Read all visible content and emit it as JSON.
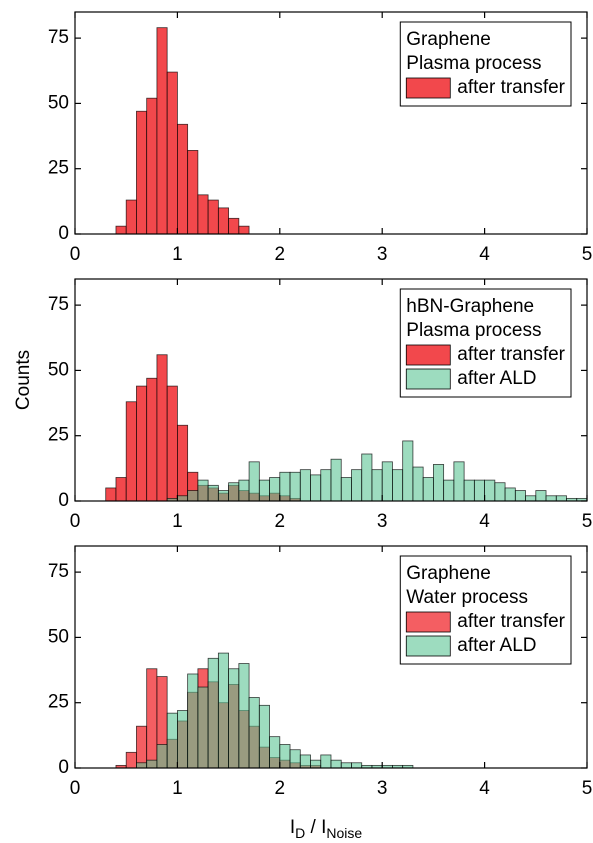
{
  "chart_data": [
    {
      "type": "histogram",
      "legend_title": [
        "Graphene",
        "Plasma process"
      ],
      "legend": "upper right",
      "xlim": [
        0,
        5
      ],
      "xticks": [
        0,
        1,
        2,
        3,
        4,
        5
      ],
      "ylim": [
        0,
        85
      ],
      "yticks": [
        0,
        25,
        50,
        75
      ],
      "series": [
        {
          "name": "after transfer",
          "color": "#f0282d",
          "alpha": 0.85,
          "bins": [
            0.4,
            0.5,
            0.6,
            0.7,
            0.8,
            0.9,
            1.0,
            1.1,
            1.2,
            1.3,
            1.4,
            1.5,
            1.6,
            1.7
          ],
          "values": [
            3,
            13,
            47,
            52,
            79,
            62,
            42,
            32,
            15,
            13,
            10,
            6,
            3
          ]
        }
      ]
    },
    {
      "type": "histogram",
      "legend_title": [
        "hBN-Graphene",
        "Plasma process"
      ],
      "legend": "upper right",
      "ylabel": "Counts",
      "xlim": [
        0,
        5
      ],
      "xticks": [
        0,
        1,
        2,
        3,
        4,
        5
      ],
      "ylim": [
        0,
        85
      ],
      "yticks": [
        0,
        25,
        50,
        75
      ],
      "series": [
        {
          "name": "after transfer",
          "color": "#f0282d",
          "alpha": 0.85,
          "bins": [
            0.3,
            0.4,
            0.5,
            0.6,
            0.7,
            0.8,
            0.9,
            1.0,
            1.1,
            1.2,
            1.3,
            1.4,
            1.5,
            1.6,
            1.7,
            1.8,
            1.9,
            2.0,
            2.1,
            2.2
          ],
          "values": [
            5,
            9,
            38,
            44,
            47,
            56,
            44,
            29,
            11,
            6,
            5,
            3,
            6,
            4,
            3,
            2,
            3,
            2,
            1
          ]
        },
        {
          "name": "after ALD",
          "color": "#5cc494",
          "alpha": 0.6,
          "bins": [
            0.9,
            1.0,
            1.1,
            1.2,
            1.3,
            1.4,
            1.5,
            1.6,
            1.7,
            1.8,
            1.9,
            2.0,
            2.1,
            2.2,
            2.3,
            2.4,
            2.5,
            2.6,
            2.7,
            2.8,
            2.9,
            3.0,
            3.1,
            3.2,
            3.3,
            3.4,
            3.5,
            3.6,
            3.7,
            3.8,
            3.9,
            4.0,
            4.1,
            4.2,
            4.3,
            4.4,
            4.5,
            4.6,
            4.7,
            4.8,
            4.9,
            5.0
          ],
          "values": [
            1,
            2,
            4,
            8,
            6,
            4,
            7,
            8,
            15,
            8,
            9,
            11,
            11,
            12,
            10,
            12,
            16,
            9,
            12,
            18,
            12,
            15,
            12,
            23,
            13,
            9,
            14,
            8,
            15,
            8,
            8,
            8,
            7,
            5,
            4,
            2,
            4,
            2,
            2,
            1,
            1
          ]
        }
      ]
    },
    {
      "type": "histogram",
      "legend_title": [
        "Graphene",
        "Water process"
      ],
      "legend": "upper right",
      "xlabel": [
        "I",
        "D",
        " / I",
        "Noise"
      ],
      "xlim": [
        0,
        5
      ],
      "xticks": [
        0,
        1,
        2,
        3,
        4,
        5
      ],
      "ylim": [
        0,
        85
      ],
      "yticks": [
        0,
        25,
        50,
        75
      ],
      "series": [
        {
          "name": "after transfer",
          "color": "#f0282d",
          "alpha": 0.75,
          "bins": [
            0.4,
            0.5,
            0.6,
            0.7,
            0.8,
            0.9,
            1.0,
            1.1,
            1.2,
            1.3,
            1.4,
            1.5,
            1.6,
            1.7,
            1.8,
            1.9,
            2.0,
            2.1,
            2.2,
            2.3,
            2.4
          ],
          "values": [
            1,
            6,
            16,
            38,
            35,
            11,
            18,
            29,
            38,
            33,
            25,
            32,
            22,
            16,
            8,
            4,
            3,
            2,
            1,
            1
          ]
        },
        {
          "name": "after ALD",
          "color": "#5cc494",
          "alpha": 0.6,
          "bins": [
            0.6,
            0.7,
            0.8,
            0.9,
            1.0,
            1.1,
            1.2,
            1.3,
            1.4,
            1.5,
            1.6,
            1.7,
            1.8,
            1.9,
            2.0,
            2.1,
            2.2,
            2.3,
            2.4,
            2.5,
            2.6,
            2.7,
            2.8,
            2.9,
            3.0,
            3.1,
            3.2,
            3.3
          ],
          "values": [
            2,
            3,
            9,
            21,
            22,
            36,
            31,
            42,
            44,
            38,
            40,
            27,
            24,
            12,
            9,
            7,
            5,
            3,
            5,
            3,
            2,
            2,
            1,
            1,
            1,
            1,
            1
          ]
        }
      ]
    }
  ]
}
